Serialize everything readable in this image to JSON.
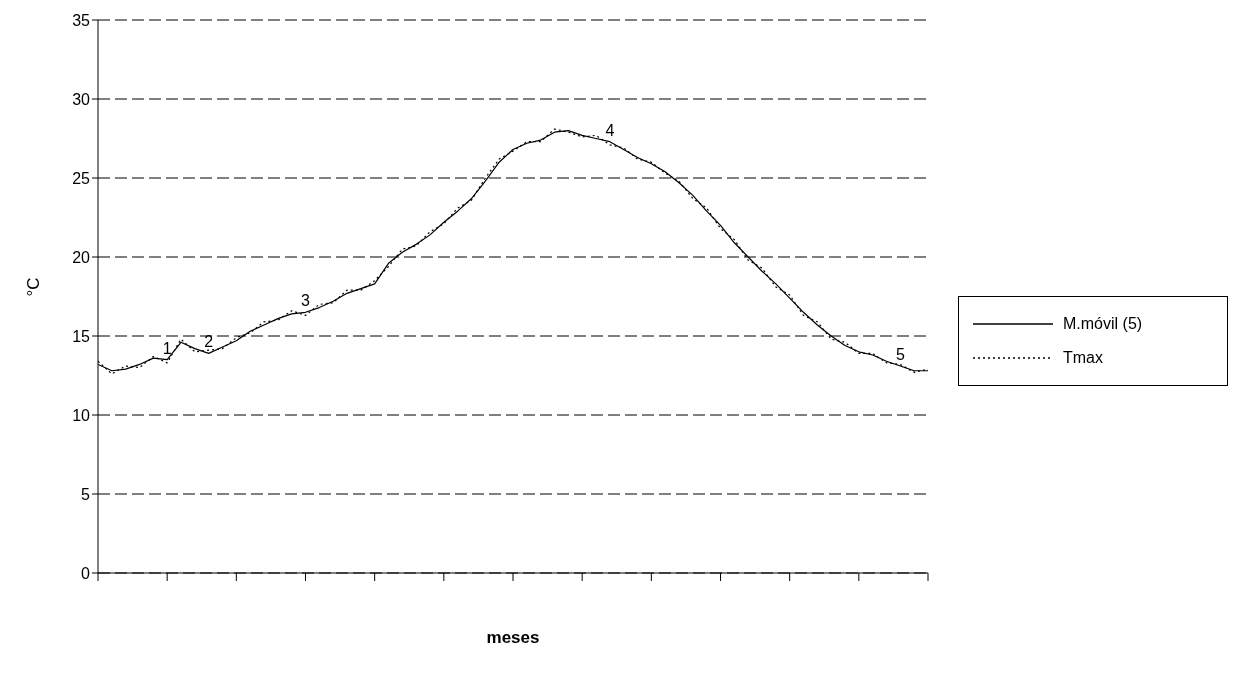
{
  "chart_data": {
    "type": "line",
    "xlabel": "meses",
    "ylabel": "°C",
    "categories": [
      null,
      null,
      null,
      null,
      null,
      null,
      null,
      null,
      null,
      null,
      null,
      null,
      null,
      null,
      null,
      null,
      null,
      null,
      null,
      null,
      null,
      null,
      null,
      null,
      null,
      null,
      null,
      null,
      null,
      null,
      null,
      null,
      null,
      null,
      null,
      null,
      null,
      null,
      null,
      null,
      null,
      null,
      null,
      null,
      null,
      null,
      null,
      null,
      null,
      null,
      null,
      null,
      null,
      null,
      null,
      null,
      null,
      null,
      null,
      null,
      null
    ],
    "series": [
      {
        "name": "M.móvil (5)",
        "color": "#000000",
        "line_style": "solid",
        "values": [
          13.2,
          12.8,
          12.9,
          13.2,
          13.6,
          13.5,
          14.6,
          14.2,
          13.9,
          14.3,
          14.7,
          15.3,
          15.7,
          16.1,
          16.4,
          16.5,
          16.8,
          17.2,
          17.7,
          18.0,
          18.3,
          19.6,
          20.3,
          20.8,
          21.4,
          22.2,
          22.9,
          23.7,
          24.8,
          26.0,
          26.8,
          27.2,
          27.4,
          27.9,
          28.0,
          27.7,
          27.5,
          27.3,
          26.8,
          26.3,
          25.9,
          25.4,
          24.7,
          23.9,
          22.9,
          22.0,
          20.9,
          20.0,
          19.1,
          18.3,
          17.4,
          16.5,
          15.7,
          15.0,
          14.4,
          14.0,
          13.8,
          13.4,
          13.1,
          12.8,
          12.8
        ]
      },
      {
        "name": "Tmax",
        "color": "#000000",
        "line_style": "dotted",
        "values": [
          13.4,
          12.6,
          13.1,
          13.0,
          13.7,
          13.3,
          14.8,
          14.0,
          14.1,
          14.2,
          14.9,
          15.2,
          15.9,
          16.0,
          16.6,
          16.3,
          17.0,
          17.1,
          17.9,
          17.9,
          18.5,
          19.4,
          20.5,
          20.7,
          21.6,
          22.1,
          23.1,
          23.6,
          25.0,
          26.2,
          26.7,
          27.3,
          27.3,
          28.1,
          27.9,
          27.6,
          27.7,
          27.1,
          26.9,
          26.2,
          26.0,
          25.3,
          24.8,
          23.7,
          23.1,
          21.8,
          21.1,
          19.8,
          19.3,
          18.1,
          17.6,
          16.3,
          15.9,
          14.8,
          14.6,
          13.9,
          13.9,
          13.3,
          13.2,
          12.7,
          12.9
        ]
      }
    ],
    "annotations": [
      "1",
      "2",
      "3",
      "4",
      "5"
    ],
    "ylim": [
      0,
      35
    ],
    "yticks": [
      0,
      5,
      10,
      15,
      20,
      25,
      30,
      35
    ],
    "grid": "y",
    "legend": "right",
    "marker": "none"
  }
}
